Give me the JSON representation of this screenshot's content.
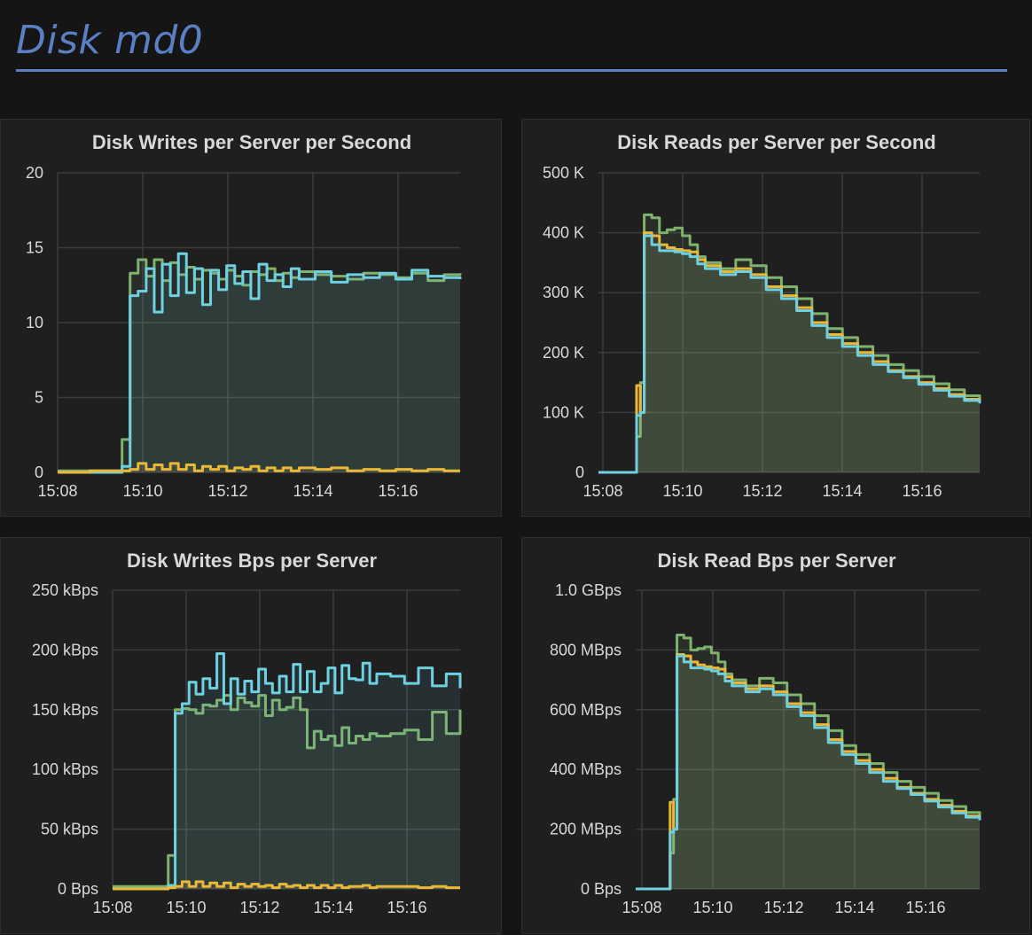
{
  "row": {
    "title": "Disk md0"
  },
  "colors": {
    "green": "#7eb26d",
    "yellow": "#eab839",
    "blue": "#6ed0e0",
    "title_blue": "#5a7fc2"
  },
  "chart_data": [
    {
      "type": "line",
      "title": "Disk Writes per Server per Second",
      "x_ticks": [
        "15:08",
        "15:10",
        "15:12",
        "15:14",
        "15:16"
      ],
      "y_ticks": [
        "20",
        "15",
        "10",
        "5",
        "0"
      ],
      "ylim": [
        0,
        20
      ],
      "x": [
        0,
        4,
        8,
        9,
        10,
        11,
        12,
        13,
        14,
        15,
        16,
        17,
        18,
        19,
        20,
        21,
        22,
        23,
        24,
        25,
        26,
        27,
        28,
        29,
        30,
        32,
        34,
        36,
        38,
        40,
        42,
        44,
        46,
        48,
        50
      ],
      "series": [
        {
          "color": "green",
          "values": [
            0.1,
            0.1,
            2.2,
            13.3,
            14.2,
            13.1,
            14.2,
            12.8,
            14.0,
            13.2,
            13.7,
            12.9,
            13.5,
            13.3,
            12.9,
            13.5,
            13.1,
            12.5,
            13.4,
            13.2,
            13.6,
            12.8,
            13.3,
            13.0,
            13.4,
            13.2,
            13.1,
            12.9,
            13.3,
            13.2,
            13.0,
            13.3,
            12.8,
            13.2,
            13.3
          ]
        },
        {
          "color": "blue",
          "values": [
            0.0,
            0.0,
            0.4,
            11.8,
            12.1,
            13.6,
            10.7,
            13.9,
            11.8,
            14.6,
            12.0,
            13.6,
            11.2,
            13.5,
            12.2,
            13.8,
            12.6,
            13.4,
            11.6,
            13.9,
            12.8,
            13.2,
            12.4,
            13.6,
            12.9,
            13.4,
            12.7,
            13.2,
            13.0,
            13.3,
            12.9,
            13.5,
            13.1,
            13.0,
            12.9
          ]
        },
        {
          "color": "yellow",
          "values": [
            0.0,
            0.1,
            0.1,
            0.2,
            0.6,
            0.2,
            0.5,
            0.2,
            0.6,
            0.2,
            0.5,
            0.1,
            0.4,
            0.2,
            0.4,
            0.1,
            0.3,
            0.2,
            0.4,
            0.1,
            0.3,
            0.1,
            0.3,
            0.1,
            0.3,
            0.2,
            0.3,
            0.1,
            0.2,
            0.1,
            0.2,
            0.1,
            0.2,
            0.1,
            0.1
          ]
        }
      ]
    },
    {
      "type": "line",
      "title": "Disk Reads per Server per Second",
      "x_ticks": [
        "15:08",
        "15:10",
        "15:12",
        "15:14",
        "15:16"
      ],
      "y_ticks": [
        "500 K",
        "400 K",
        "300 K",
        "200 K",
        "100 K",
        "0"
      ],
      "ylim": [
        0,
        500
      ],
      "x": [
        0,
        4,
        5,
        5.5,
        6,
        7,
        8,
        9,
        10,
        11,
        12,
        13,
        14,
        16,
        18,
        20,
        22,
        24,
        26,
        28,
        30,
        32,
        34,
        36,
        38,
        40,
        42,
        44,
        46,
        48,
        50
      ],
      "series": [
        {
          "color": "green",
          "values": [
            0,
            0,
            60,
            150,
            430,
            425,
            400,
            405,
            408,
            395,
            380,
            360,
            350,
            340,
            355,
            345,
            325,
            310,
            290,
            265,
            240,
            225,
            210,
            195,
            180,
            170,
            160,
            148,
            138,
            128,
            122
          ]
        },
        {
          "color": "yellow",
          "values": [
            0,
            0,
            145,
            100,
            400,
            395,
            380,
            375,
            372,
            370,
            368,
            355,
            345,
            335,
            340,
            330,
            310,
            295,
            275,
            250,
            230,
            215,
            200,
            185,
            170,
            160,
            150,
            140,
            130,
            122,
            118
          ]
        },
        {
          "color": "blue",
          "values": [
            0,
            0,
            95,
            100,
            395,
            380,
            370,
            370,
            368,
            365,
            360,
            348,
            340,
            330,
            335,
            325,
            305,
            290,
            270,
            245,
            225,
            210,
            195,
            180,
            168,
            158,
            147,
            137,
            127,
            120,
            115
          ]
        }
      ]
    },
    {
      "type": "line",
      "title": "Disk Writes Bps per Server",
      "x_ticks": [
        "15:08",
        "15:10",
        "15:12",
        "15:14",
        "15:16"
      ],
      "y_ticks": [
        "250 kBps",
        "200 kBps",
        "150 kBps",
        "100 kBps",
        "50 kBps",
        "0 Bps"
      ],
      "ylim": [
        0,
        250
      ],
      "x": [
        0,
        4,
        8,
        9,
        10,
        11,
        12,
        13,
        14,
        15,
        16,
        17,
        18,
        19,
        20,
        21,
        22,
        23,
        24,
        25,
        26,
        27,
        28,
        29,
        30,
        31,
        32,
        33,
        34,
        35,
        36,
        37,
        38,
        40,
        42,
        44,
        46,
        48,
        50
      ],
      "series": [
        {
          "color": "green",
          "values": [
            2,
            2,
            28,
            150,
            151,
            150,
            147,
            154,
            153,
            158,
            162,
            150,
            160,
            156,
            153,
            162,
            145,
            158,
            150,
            152,
            160,
            150,
            118,
            132,
            125,
            128,
            120,
            135,
            122,
            128,
            125,
            130,
            128,
            130,
            133,
            125,
            148,
            130,
            150
          ]
        },
        {
          "color": "blue",
          "values": [
            0,
            0,
            3,
            147,
            155,
            173,
            163,
            176,
            168,
            197,
            155,
            176,
            163,
            174,
            165,
            184,
            172,
            164,
            178,
            165,
            188,
            165,
            182,
            165,
            172,
            185,
            164,
            187,
            176,
            175,
            189,
            172,
            180,
            178,
            172,
            185,
            170,
            180,
            168
          ]
        },
        {
          "color": "yellow",
          "values": [
            0,
            0,
            1,
            2,
            6,
            2,
            6,
            2,
            5,
            2,
            5,
            1,
            4,
            2,
            4,
            2,
            3,
            1,
            4,
            2,
            3,
            1,
            3,
            1,
            3,
            1,
            3,
            1,
            2,
            2,
            3,
            1,
            2,
            2,
            2,
            1,
            2,
            1,
            1
          ]
        }
      ]
    },
    {
      "type": "line",
      "title": "Disk Read Bps per Server",
      "x_ticks": [
        "15:08",
        "15:10",
        "15:12",
        "15:14",
        "15:16"
      ],
      "y_ticks": [
        "1.0 GBps",
        "800 MBps",
        "600 MBps",
        "400 MBps",
        "200 MBps",
        "0 Bps"
      ],
      "ylim": [
        0,
        1000
      ],
      "x": [
        0,
        4,
        5,
        5.5,
        6,
        7,
        8,
        9,
        10,
        11,
        12,
        13,
        14,
        16,
        18,
        20,
        22,
        24,
        26,
        28,
        30,
        32,
        34,
        36,
        38,
        40,
        42,
        44,
        46,
        48,
        50
      ],
      "series": [
        {
          "color": "green",
          "values": [
            0,
            0,
            120,
            300,
            850,
            840,
            800,
            805,
            810,
            790,
            760,
            720,
            700,
            680,
            705,
            690,
            650,
            620,
            580,
            530,
            480,
            450,
            420,
            390,
            360,
            340,
            320,
            296,
            276,
            256,
            244
          ]
        },
        {
          "color": "yellow",
          "values": [
            0,
            0,
            290,
            200,
            785,
            780,
            760,
            750,
            744,
            740,
            736,
            710,
            690,
            670,
            680,
            660,
            620,
            590,
            550,
            500,
            460,
            430,
            400,
            370,
            340,
            320,
            300,
            280,
            260,
            244,
            236
          ]
        },
        {
          "color": "blue",
          "values": [
            0,
            0,
            190,
            200,
            780,
            760,
            740,
            740,
            736,
            730,
            720,
            696,
            680,
            660,
            670,
            650,
            610,
            580,
            540,
            490,
            450,
            420,
            390,
            360,
            336,
            316,
            294,
            274,
            254,
            240,
            230
          ]
        }
      ]
    }
  ]
}
